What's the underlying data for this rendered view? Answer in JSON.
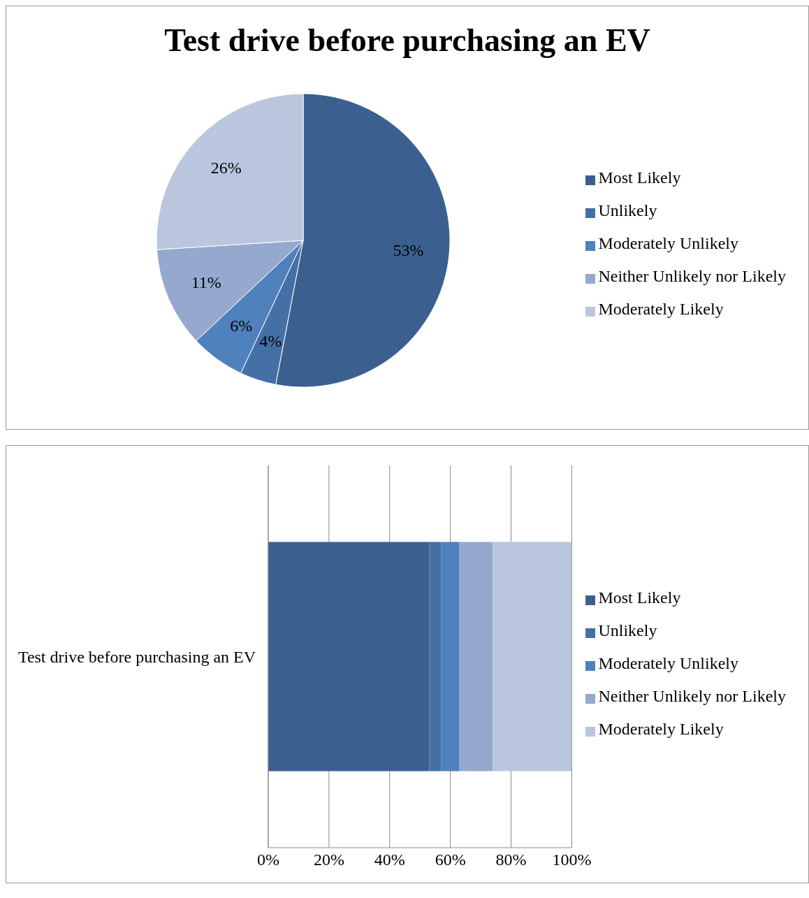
{
  "chart_data": [
    {
      "type": "pie",
      "title": "Test drive before purchasing an EV",
      "categories": [
        "Most Likely",
        "Unlikely",
        "Moderately Unlikely",
        "Neither Unlikely nor Likely",
        "Moderately Likely"
      ],
      "values": [
        53,
        4,
        6,
        11,
        26
      ],
      "value_labels": [
        "53%",
        "4%",
        "6%",
        "11%",
        "26%"
      ],
      "colors": [
        "#3b6090",
        "#4470a6",
        "#4f81bd",
        "#95a9cf",
        "#b9c6dd"
      ],
      "legend": "right"
    },
    {
      "type": "bar",
      "orientation": "horizontal",
      "stacked": true,
      "categories": [
        "Test drive before purchasing an EV"
      ],
      "series": [
        {
          "name": "Most Likely",
          "color": "#3b6090",
          "values": [
            53
          ]
        },
        {
          "name": "Unlikely",
          "color": "#4470a6",
          "values": [
            4
          ]
        },
        {
          "name": "Moderately Unlikely",
          "color": "#4f81bd",
          "values": [
            6
          ]
        },
        {
          "name": "Neither Unlikely nor Likely",
          "color": "#95a9cf",
          "values": [
            11
          ]
        },
        {
          "name": "Moderately Likely",
          "color": "#b9c6dd",
          "values": [
            26
          ]
        }
      ],
      "xlim": [
        0,
        100
      ],
      "xticks": [
        {
          "value": 0,
          "label": "0%"
        },
        {
          "value": 20,
          "label": "20%"
        },
        {
          "value": 40,
          "label": "40%"
        },
        {
          "value": 60,
          "label": "60%"
        },
        {
          "value": 80,
          "label": "80%"
        },
        {
          "value": 100,
          "label": "100%"
        }
      ],
      "grid": "x",
      "legend": "right"
    }
  ]
}
